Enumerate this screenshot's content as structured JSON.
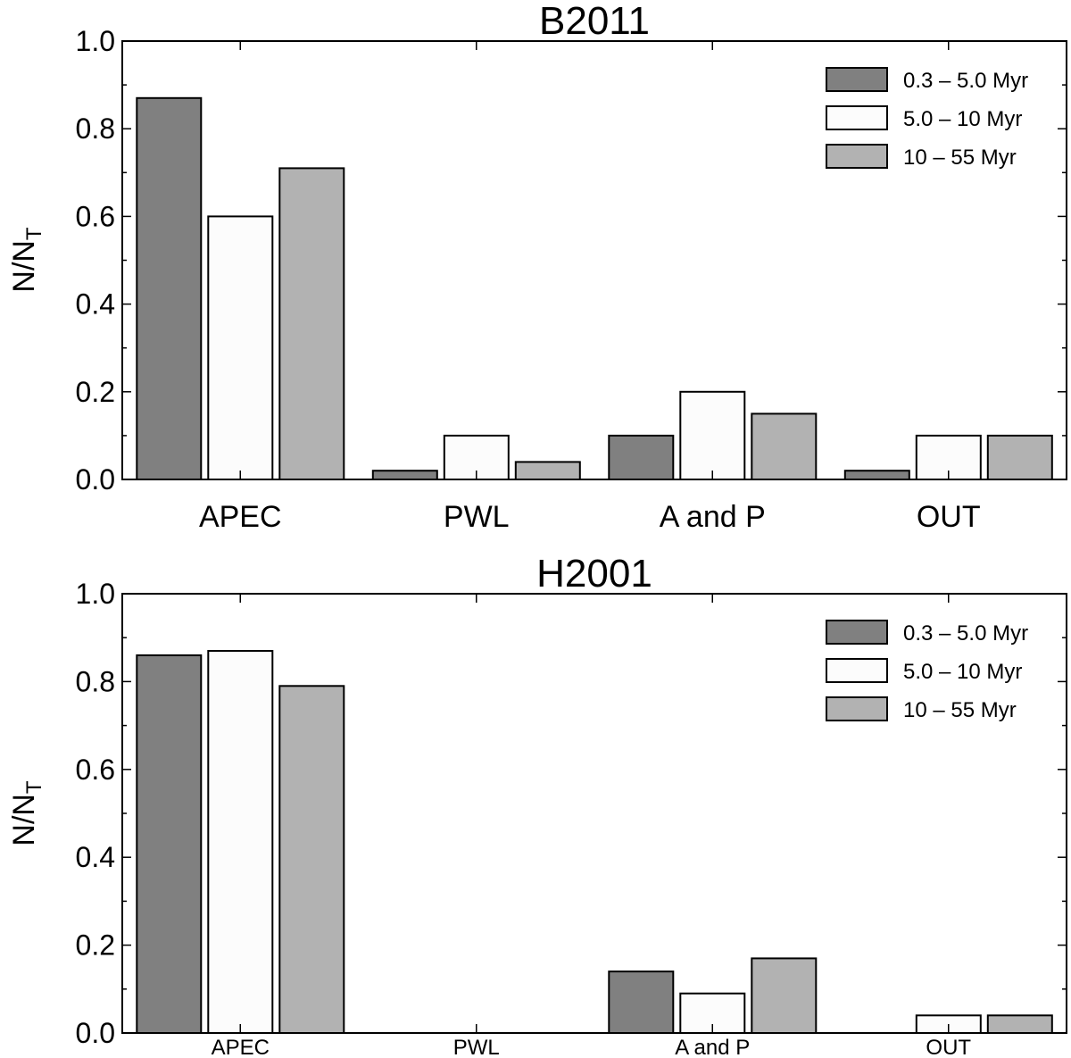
{
  "colors": {
    "series_0": "#808080",
    "series_1": "#fcfcfc",
    "series_2": "#b2b2b2"
  },
  "chart_data": [
    {
      "type": "bar",
      "title": "B2011",
      "ylabel_main": "N/N",
      "ylabel_sub": "T",
      "categories": [
        "APEC",
        "PWL",
        "A and P",
        "OUT"
      ],
      "series": [
        {
          "name": "0.3 – 5.0 Myr",
          "values": [
            0.87,
            0.02,
            0.1,
            0.02
          ]
        },
        {
          "name": "5.0 – 10 Myr",
          "values": [
            0.6,
            0.1,
            0.2,
            0.1
          ]
        },
        {
          "name": "10 – 55 Myr",
          "values": [
            0.71,
            0.04,
            0.15,
            0.1
          ]
        }
      ],
      "ylim": [
        0,
        1.0
      ],
      "yticks": [
        "0.0",
        "0.2",
        "0.4",
        "0.6",
        "0.8",
        "1.0"
      ],
      "legend": "top-right",
      "grid": false
    },
    {
      "type": "bar",
      "title": "H2001",
      "ylabel_main": "N/N",
      "ylabel_sub": "T",
      "categories": [
        "APEC",
        "PWL",
        "A and P",
        "OUT"
      ],
      "series": [
        {
          "name": "0.3 – 5.0 Myr",
          "values": [
            0.86,
            0.0,
            0.14,
            0.0
          ]
        },
        {
          "name": "5.0 – 10 Myr",
          "values": [
            0.87,
            0.0,
            0.09,
            0.04
          ]
        },
        {
          "name": "10 – 55 Myr",
          "values": [
            0.79,
            0.0,
            0.17,
            0.04
          ]
        }
      ],
      "ylim": [
        0,
        1.0
      ],
      "yticks": [
        "0.0",
        "0.2",
        "0.4",
        "0.6",
        "0.8",
        "1.0"
      ],
      "legend": "top-right",
      "grid": false
    }
  ]
}
